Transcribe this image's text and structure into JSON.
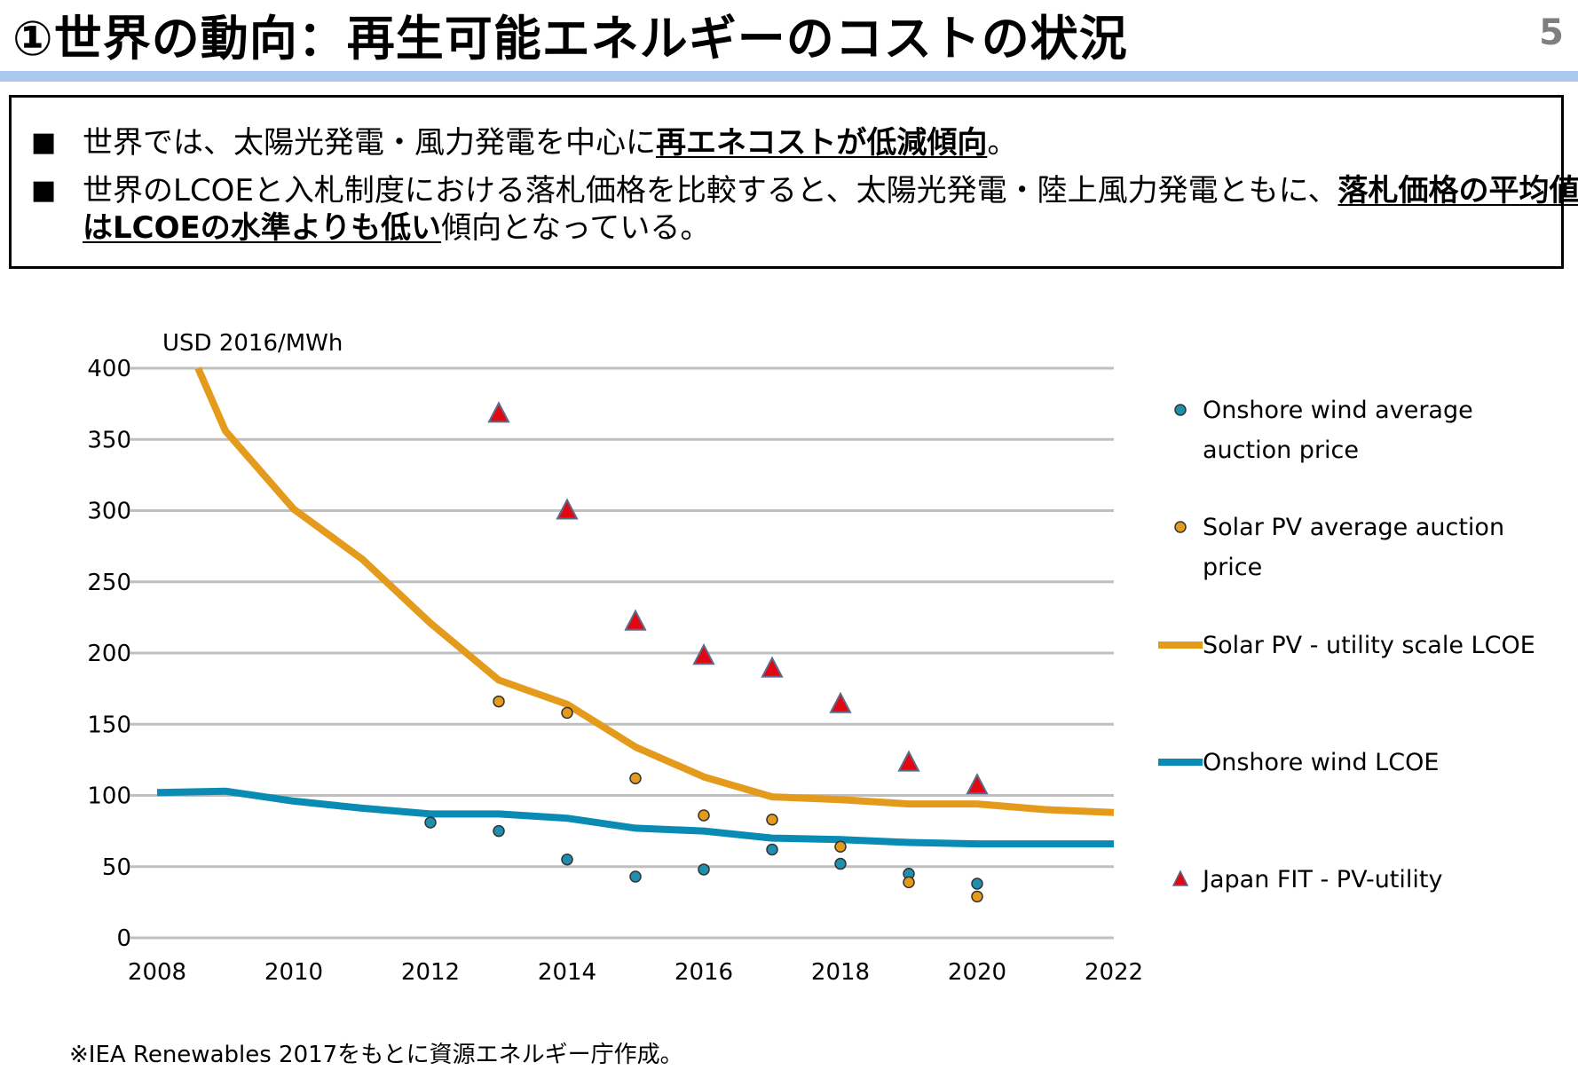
{
  "header": {
    "title": "①世界の動向：再生可能エネルギーのコストの状況",
    "page_number": "5"
  },
  "summary": {
    "bullet_mark": "■",
    "bullet1": {
      "pre": "世界では、太陽光発電・風力発電を中心に",
      "bold": "再エネコストが低減傾向",
      "post": "。"
    },
    "bullet2": {
      "line1_pre": "世界のLCOEと入札制度における落札価格を比較すると、太陽光発電・陸上風力発電ともに、",
      "line1_bold": "落札価格の平均値",
      "line2_bold": "はLCOEの水準よりも低い",
      "line2_post": "傾向となっている。"
    }
  },
  "footnote": "※IEA Renewables 2017をもとに資源エネルギー庁作成。",
  "colors": {
    "solar": "#e49b1c",
    "wind": "#0a8bb3",
    "japan_fit": "#e30613",
    "grid": "#bfbfbf"
  },
  "chart_data": {
    "type": "line",
    "ylabel": "USD 2016/MWh",
    "xlim": [
      2008,
      2022
    ],
    "ylim": [
      0,
      400
    ],
    "x_ticks": [
      "2008",
      "2010",
      "2012",
      "2014",
      "2016",
      "2018",
      "2020",
      "2022"
    ],
    "y_ticks": [
      "0",
      "50",
      "100",
      "150",
      "200",
      "250",
      "300",
      "350",
      "400"
    ],
    "grid": true,
    "legend_position": "right",
    "series": [
      {
        "name": "Onshore wind average auction price",
        "kind": "points",
        "marker": "circle",
        "color": "#1f8fb0",
        "x": [
          2012,
          2013,
          2014,
          2015,
          2016,
          2017,
          2018,
          2019,
          2020
        ],
        "values": [
          81,
          75,
          55,
          43,
          48,
          62,
          52,
          45,
          38
        ]
      },
      {
        "name": "Solar PV average auction price",
        "kind": "points",
        "marker": "circle",
        "color": "#e49b1c",
        "x": [
          2013,
          2014,
          2015,
          2016,
          2017,
          2018,
          2019,
          2020
        ],
        "values": [
          166,
          158,
          112,
          86,
          83,
          64,
          39,
          29
        ]
      },
      {
        "name": "Solar PV - utility scale LCOE",
        "kind": "line",
        "color": "#e49b1c",
        "x": [
          2008.6,
          2009,
          2010,
          2011,
          2012,
          2013,
          2014,
          2015,
          2016,
          2017,
          2018,
          2019,
          2020,
          2021,
          2022
        ],
        "values": [
          400,
          356,
          301,
          266,
          221,
          181,
          164,
          134,
          113,
          99,
          97,
          94,
          94,
          90,
          88
        ]
      },
      {
        "name": "Onshore wind LCOE",
        "kind": "line",
        "color": "#0a8bb3",
        "x": [
          2008,
          2009,
          2010,
          2011,
          2012,
          2013,
          2014,
          2015,
          2016,
          2017,
          2018,
          2019,
          2020,
          2021,
          2022
        ],
        "values": [
          102,
          103,
          96,
          91,
          87,
          87,
          84,
          77,
          75,
          70,
          69,
          67,
          66,
          66,
          66
        ]
      },
      {
        "name": "Japan FIT - PV-utility",
        "kind": "points",
        "marker": "triangle",
        "color": "#e30613",
        "x": [
          2013,
          2014,
          2015,
          2016,
          2017,
          2018,
          2019,
          2020
        ],
        "values": [
          368,
          300,
          222,
          198,
          189,
          164,
          123,
          107
        ]
      }
    ],
    "legend": [
      {
        "line1": "Onshore wind average",
        "line2": "auction price"
      },
      {
        "line1": "Solar PV average auction",
        "line2": "price"
      },
      {
        "line1": "Solar PV - utility scale LCOE",
        "line2": ""
      },
      {
        "line1": "Onshore wind LCOE",
        "line2": ""
      },
      {
        "line1": "Japan FIT - PV-utility",
        "line2": ""
      }
    ]
  }
}
